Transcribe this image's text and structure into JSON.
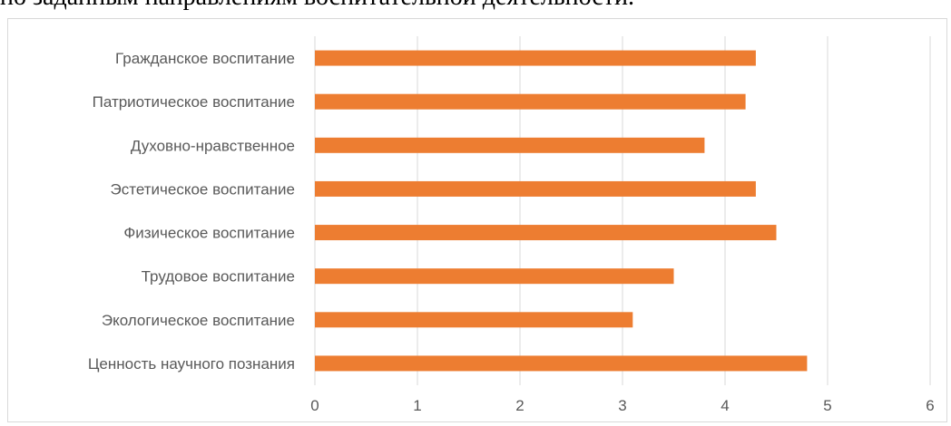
{
  "page": {
    "top_text": "по заданным направлениям воспитательной деятельности."
  },
  "colors": {
    "bar": "#ED7D31",
    "grid": "#D9D9D9",
    "label": "#595959"
  },
  "chart_data": {
    "type": "bar",
    "orientation": "horizontal",
    "title": "",
    "xlabel": "",
    "ylabel": "",
    "categories": [
      "Гражданское воспитание",
      "Патриотическое воспитание",
      "Духовно-нравственное",
      "Эстетическое воспитание",
      "Физическое воспитание",
      "Трудовое воспитание",
      "Экологическое воспитание",
      "Ценность научного познания"
    ],
    "values": [
      4.3,
      4.2,
      3.8,
      4.3,
      4.5,
      3.5,
      3.1,
      4.8
    ],
    "xlim": [
      0,
      6
    ],
    "xticks": [
      "0",
      "1",
      "2",
      "3",
      "4",
      "5",
      "6"
    ],
    "grid": "vertical",
    "legend": "none"
  }
}
